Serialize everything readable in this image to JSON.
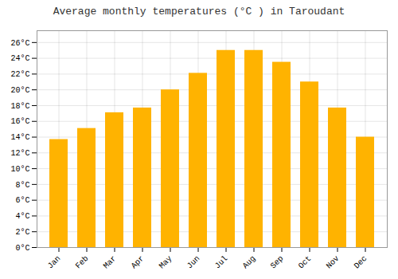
{
  "chart_data": {
    "type": "bar",
    "title": "Average monthly temperatures (°C ) in Taroudant",
    "categories": [
      "Jan",
      "Feb",
      "Mar",
      "Apr",
      "May",
      "Jun",
      "Jul",
      "Aug",
      "Sep",
      "Oct",
      "Nov",
      "Dec"
    ],
    "values": [
      13.7,
      15.1,
      17.1,
      17.7,
      20.0,
      22.1,
      25.0,
      25.0,
      23.5,
      21.0,
      17.7,
      14.0
    ],
    "color": "#FFB300",
    "ylim": [
      0,
      27.5
    ],
    "yticks": [
      {
        "value": 0,
        "label": "0°C"
      },
      {
        "value": 2,
        "label": "2°C"
      },
      {
        "value": 4,
        "label": "4°C"
      },
      {
        "value": 6,
        "label": "6°C"
      },
      {
        "value": 8,
        "label": "8°C"
      },
      {
        "value": 10,
        "label": "10°C"
      },
      {
        "value": 12,
        "label": "12°C"
      },
      {
        "value": 14,
        "label": "14°C"
      },
      {
        "value": 16,
        "label": "16°C"
      },
      {
        "value": 18,
        "label": "18°C"
      },
      {
        "value": 20,
        "label": "20°C"
      },
      {
        "value": 22,
        "label": "22°C"
      },
      {
        "value": 24,
        "label": "24°C"
      },
      {
        "value": 26,
        "label": "26°C"
      }
    ],
    "grid": true
  }
}
